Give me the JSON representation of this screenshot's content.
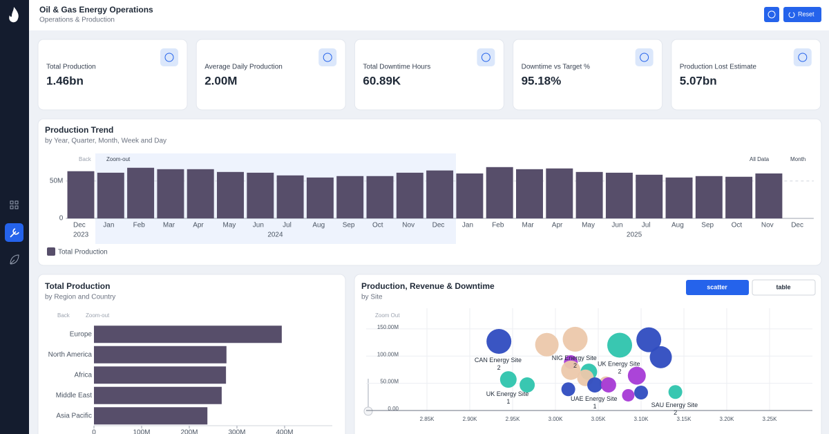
{
  "header": {
    "title": "Oil & Gas Energy Operations",
    "subtitle": "Operations & Production",
    "reset": "Reset"
  },
  "kpis": [
    {
      "label": "Total Production",
      "value": "1.46bn"
    },
    {
      "label": "Average Daily Production",
      "value": "2.00M"
    },
    {
      "label": "Total Downtime Hours",
      "value": "60.89K"
    },
    {
      "label": "Downtime vs Target %",
      "value": "95.18%"
    },
    {
      "label": "Production Lost Estimate",
      "value": "5.07bn"
    }
  ],
  "chart_data": [
    {
      "type": "bar",
      "title": "Production Trend",
      "subtitle": "by Year, Quarter, Month, Week and Day",
      "toolbar": {
        "back": "Back",
        "zoom": "Zoom-out",
        "filter": "All Data",
        "period": "Month"
      },
      "categories": [
        "Dec",
        "Jan",
        "Feb",
        "Mar",
        "Apr",
        "May",
        "Jun",
        "Jul",
        "Aug",
        "Sep",
        "Oct",
        "Nov",
        "Dec",
        "Jan",
        "Feb",
        "Mar",
        "Apr",
        "May",
        "Jun",
        "Jul",
        "Aug",
        "Sep",
        "Oct",
        "Nov",
        "Dec"
      ],
      "years": [
        "2023",
        "2024",
        "2025"
      ],
      "series": [
        {
          "name": "Total Production",
          "color": "#574e6a",
          "values": [
            63,
            61,
            67.6,
            65.7,
            65.7,
            62,
            61,
            57.4,
            54.6,
            56.5,
            56.5,
            61,
            64,
            60,
            68.5,
            65.7,
            66.7,
            62,
            61,
            58.3,
            54.6,
            56.5,
            55.6,
            60,
            null
          ]
        }
      ],
      "ylim": [
        0,
        72
      ],
      "yticks": [
        0,
        {
          "value": 50,
          "label": "50M"
        }
      ],
      "grid": true
    },
    {
      "type": "hbar",
      "title": "Total Production",
      "subtitle": "by Region and Country",
      "toolbar": {
        "back": "Back",
        "zoom": "Zoom-out"
      },
      "categories": [
        "Europe",
        "North America",
        "Africa",
        "Middle East",
        "Asia Pacific"
      ],
      "values": [
        394,
        278,
        277,
        268,
        238
      ],
      "color": "#574e6a",
      "xlim": [
        0,
        500
      ],
      "xticks": [
        0,
        {
          "value": 100,
          "label": "100M"
        },
        {
          "value": 200,
          "label": "200M"
        },
        {
          "value": 300,
          "label": "300M"
        },
        {
          "value": 400,
          "label": "400M"
        }
      ]
    },
    {
      "type": "scatter",
      "title": "Production, Revenue & Downtime",
      "subtitle": "by Site",
      "toggles": [
        "scatter",
        "table"
      ],
      "zoom": "Zoom Out",
      "points": [
        {
          "x": 2.934,
          "y": 127,
          "size": 18,
          "color": "#2f4cc0",
          "label": "CAN Energy Site 2"
        },
        {
          "x": 2.99,
          "y": 121,
          "size": 17,
          "color": "#ecc8ab"
        },
        {
          "x": 3.023,
          "y": 131,
          "size": 18,
          "color": "#ecc8ab",
          "label": "NIG Energy Site 2"
        },
        {
          "x": 3.075,
          "y": 120,
          "size": 18,
          "color": "#2ec4ad",
          "label": "UK Energy Site 2"
        },
        {
          "x": 3.109,
          "y": 130,
          "size": 18,
          "color": "#2f4cc0"
        },
        {
          "x": 3.123,
          "y": 98,
          "size": 16,
          "color": "#2f4cc0"
        },
        {
          "x": 3.018,
          "y": 89,
          "size": 10,
          "color": "#a63ad6"
        },
        {
          "x": 3.039,
          "y": 71,
          "size": 12,
          "color": "#2ec4ad"
        },
        {
          "x": 3.018,
          "y": 74,
          "size": 14,
          "color": "#ecc8ab"
        },
        {
          "x": 3.035,
          "y": 60,
          "size": 12,
          "color": "#ecc8ab"
        },
        {
          "x": 3.059,
          "y": 50,
          "size": 10,
          "color": "#ecc8ab"
        },
        {
          "x": 3.095,
          "y": 64,
          "size": 13,
          "color": "#a63ad6"
        },
        {
          "x": 2.945,
          "y": 57,
          "size": 12,
          "color": "#2ec4ad",
          "label": "UK Energy Site 1"
        },
        {
          "x": 2.967,
          "y": 47,
          "size": 11,
          "color": "#2ec4ad"
        },
        {
          "x": 3.015,
          "y": 39,
          "size": 10,
          "color": "#2f4cc0"
        },
        {
          "x": 3.046,
          "y": 47,
          "size": 11,
          "color": "#2f4cc0",
          "label": "UAE Energy Site 1"
        },
        {
          "x": 3.062,
          "y": 47,
          "size": 11,
          "color": "#a63ad6"
        },
        {
          "x": 3.085,
          "y": 28,
          "size": 9,
          "color": "#a63ad6"
        },
        {
          "x": 3.1,
          "y": 33,
          "size": 10,
          "color": "#2f4cc0"
        },
        {
          "x": 3.14,
          "y": 34,
          "size": 10,
          "color": "#2ec4ad",
          "label": "SAU Energy Site 2"
        }
      ],
      "xlim": [
        2.779,
        3.3
      ],
      "xticks": [
        {
          "value": 2.85,
          "label": "2.85K"
        },
        {
          "value": 2.9,
          "label": "2.90K"
        },
        {
          "value": 2.95,
          "label": "2.95K"
        },
        {
          "value": 3.0,
          "label": "3.00K"
        },
        {
          "value": 3.05,
          "label": "3.05K"
        },
        {
          "value": 3.1,
          "label": "3.10K"
        },
        {
          "value": 3.15,
          "label": "3.15K"
        },
        {
          "value": 3.2,
          "label": "3.20K"
        },
        {
          "value": 3.25,
          "label": "3.25K"
        }
      ],
      "ylim": [
        0,
        188
      ],
      "yticks": [
        {
          "value": 0,
          "label": "0.00"
        },
        {
          "value": 50,
          "label": "50.00M"
        },
        {
          "value": 100,
          "label": "100.00M"
        },
        {
          "value": 150,
          "label": "150.00M"
        }
      ],
      "grid": true
    }
  ]
}
